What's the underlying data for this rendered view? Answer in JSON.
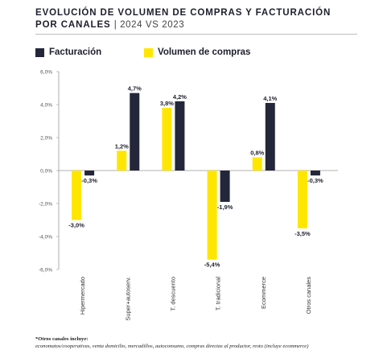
{
  "header": {
    "title_line1": "EVOLUCIÓN DE VOLUMEN DE COMPRAS Y FACTURACIÓN",
    "title_line2": "POR CANALES",
    "title_suffix": "| 2024 VS 2023"
  },
  "colors": {
    "facturacion": "#24263a",
    "volumen": "#ffe600",
    "axis": "#999999",
    "text": "#1e1e2d"
  },
  "chart_data": {
    "type": "bar",
    "categories": [
      "Hipermercado",
      "Super+autoserv.",
      "T. descuento",
      "T. tradicional",
      "Ecommerce",
      "Otros canales"
    ],
    "series": [
      {
        "name": "Volumen de compras",
        "values": [
          -3.0,
          1.2,
          3.8,
          -5.4,
          0.8,
          -3.5
        ],
        "labels": [
          "-3,0%",
          "1,2%",
          "3,8%",
          "-5,4%",
          "0,8%",
          "-3,5%"
        ]
      },
      {
        "name": "Facturación",
        "values": [
          -0.3,
          4.7,
          4.2,
          -1.9,
          4.1,
          -0.3
        ],
        "labels": [
          "-0,3%",
          "4,7%",
          "4,2%",
          "-1,9%",
          "4,1%",
          "-0,3%"
        ]
      }
    ],
    "legend": [
      "Facturación",
      "Volumen de compras"
    ],
    "yticks": [
      "6,0%",
      "4,0%",
      "2,0%",
      "0,0%",
      "-2,0%",
      "-4,0%",
      "-6,0%"
    ],
    "ylim": [
      -6,
      6
    ],
    "grid": false,
    "legend_position": "top-left"
  },
  "footnote": {
    "label": "*Otros canales incluye:",
    "text": "economatos/cooperativas, venta domicilio, mercadillos, autoconsumo, compras directas al productor, resto (incluye ecommerce)"
  }
}
